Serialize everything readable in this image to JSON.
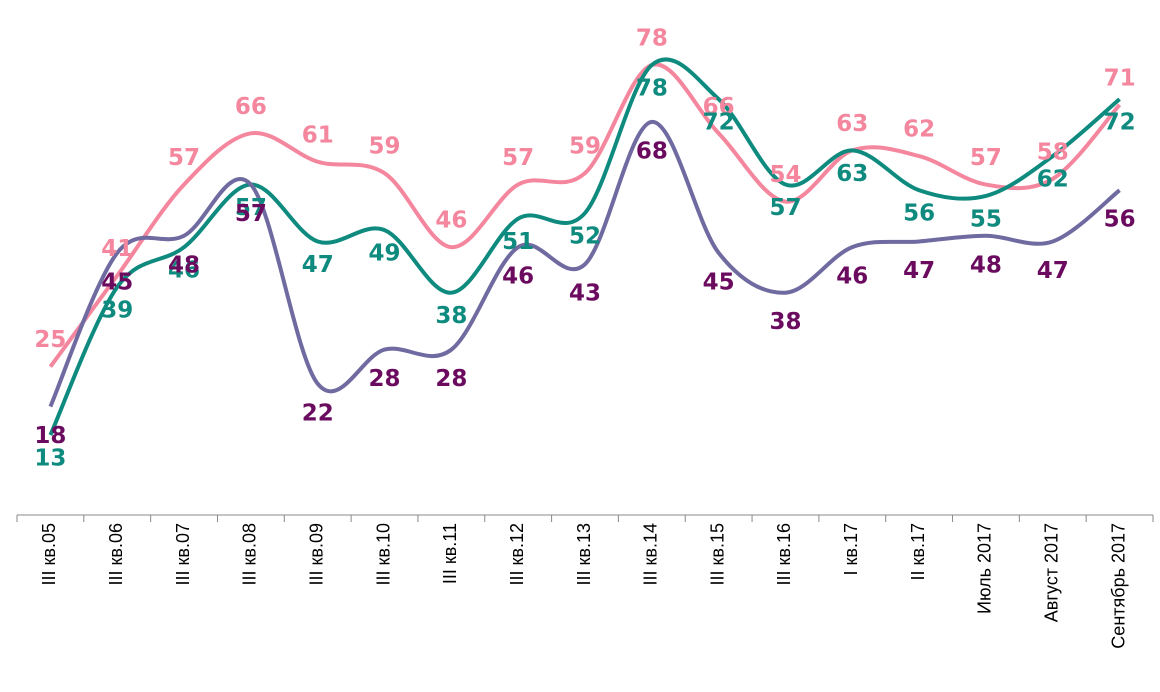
{
  "chart_data": {
    "type": "line",
    "categories": [
      "III кв.05",
      "III кв.06",
      "III кв.07",
      "III кв.08",
      "III кв.09",
      "III кв.10",
      "III кв.11",
      "III кв.12",
      "III кв.13",
      "III кв.14",
      "III кв.15",
      "III кв.16",
      "I кв.17",
      "II кв.17",
      "Июль 2017",
      "Август 2017",
      "Сентябрь 2017"
    ],
    "series": [
      {
        "color": "#f4869e",
        "values": [
          25,
          41,
          57,
          66,
          61,
          59,
          46,
          57,
          59,
          78,
          66,
          54,
          63,
          62,
          57,
          58,
          71
        ]
      },
      {
        "color": "#0e8b7e",
        "values": [
          13,
          39,
          46,
          57,
          47,
          49,
          38,
          51,
          52,
          78,
          72,
          57,
          63,
          56,
          55,
          62,
          72
        ]
      },
      {
        "color": "#6f6aa0",
        "values": [
          18,
          45,
          48,
          57,
          22,
          28,
          28,
          46,
          43,
          68,
          45,
          38,
          46,
          47,
          48,
          47,
          56
        ]
      }
    ]
  }
}
